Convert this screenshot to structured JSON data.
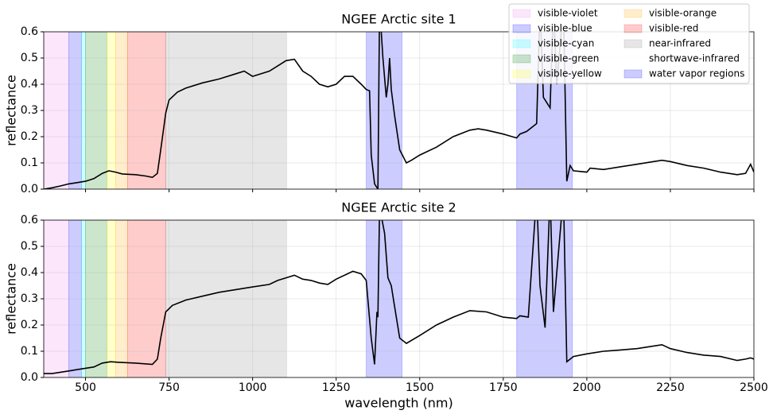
{
  "chart_data": [
    {
      "type": "line",
      "title": "NGEE Arctic site 1",
      "ylabel": "reflectance",
      "xlim": [
        375,
        2500
      ],
      "ylim": [
        0,
        0.6
      ],
      "xticks": [
        500,
        750,
        1000,
        1250,
        1500,
        1750,
        2000,
        2250,
        2500
      ],
      "yticks": [
        {
          "value": 0,
          "label": "0.0"
        },
        {
          "value": 0.1,
          "label": "0.1"
        },
        {
          "value": 0.2,
          "label": "0.2"
        },
        {
          "value": 0.3,
          "label": "0.3"
        },
        {
          "value": 0.4,
          "label": "0.4"
        },
        {
          "value": 0.5,
          "label": "0.5"
        },
        {
          "value": 0.6,
          "label": "0.6"
        }
      ],
      "grid": true,
      "legend": "upper right",
      "band_alpha": 0.2,
      "bands": [
        {
          "name": "visible-violet",
          "color": "#ee82ee",
          "range": [
            375,
            450
          ]
        },
        {
          "name": "visible-blue",
          "color": "#0000ff",
          "range": [
            450,
            488
          ]
        },
        {
          "name": "visible-cyan",
          "color": "#00ffff",
          "range": [
            488,
            500
          ]
        },
        {
          "name": "visible-green",
          "color": "#008000",
          "range": [
            500,
            564
          ]
        },
        {
          "name": "visible-yellow",
          "color": "#ffff00",
          "range": [
            564,
            590
          ]
        },
        {
          "name": "visible-orange",
          "color": "#ffa500",
          "range": [
            590,
            626
          ]
        },
        {
          "name": "visible-red",
          "color": "#ff0000",
          "range": [
            626,
            740
          ]
        },
        {
          "name": "near-infrared",
          "color": "#808080",
          "range": [
            740,
            1102
          ]
        },
        {
          "name": "shortwave-infrared",
          "color": "#ffffff",
          "range": [
            1102,
            2500
          ]
        },
        {
          "name": "water vapor regions",
          "color": "#0000ff",
          "range": [
            1340,
            1447
          ]
        },
        {
          "color": "#0000ff",
          "range": [
            1790,
            1957
          ]
        }
      ],
      "series": [
        {
          "color": "#000000",
          "x": [
            375,
            400,
            425,
            450,
            475,
            500,
            525,
            550,
            570,
            590,
            610,
            650,
            680,
            700,
            715,
            725,
            740,
            750,
            775,
            800,
            850,
            900,
            950,
            975,
            1000,
            1050,
            1075,
            1100,
            1125,
            1150,
            1175,
            1200,
            1225,
            1250,
            1275,
            1300,
            1325,
            1340,
            1350,
            1355,
            1365,
            1375,
            1380,
            1390,
            1400,
            1405,
            1410,
            1415,
            1425,
            1440,
            1460,
            1475,
            1500,
            1550,
            1600,
            1650,
            1675,
            1700,
            1750,
            1790,
            1800,
            1820,
            1850,
            1860,
            1870,
            1880,
            1890,
            1900,
            1910,
            1930,
            1940,
            1950,
            1960,
            2000,
            2010,
            2050,
            2100,
            2150,
            2200,
            2225,
            2250,
            2300,
            2350,
            2400,
            2450,
            2475,
            2490,
            2500
          ],
          "values": [
            0.0,
            0.005,
            0.012,
            0.02,
            0.025,
            0.03,
            0.04,
            0.06,
            0.07,
            0.065,
            0.058,
            0.055,
            0.05,
            0.045,
            0.06,
            0.15,
            0.29,
            0.34,
            0.37,
            0.385,
            0.405,
            0.42,
            0.44,
            0.45,
            0.43,
            0.45,
            0.47,
            0.49,
            0.495,
            0.45,
            0.43,
            0.4,
            0.39,
            0.4,
            0.43,
            0.43,
            0.4,
            0.38,
            0.375,
            0.13,
            0.02,
            0.0,
            0.7,
            0.5,
            0.35,
            0.4,
            0.5,
            0.38,
            0.28,
            0.15,
            0.1,
            0.11,
            0.13,
            0.16,
            0.2,
            0.225,
            0.23,
            0.225,
            0.21,
            0.195,
            0.21,
            0.22,
            0.25,
            0.7,
            0.35,
            0.33,
            0.31,
            0.7,
            0.4,
            0.7,
            0.03,
            0.09,
            0.07,
            0.065,
            0.08,
            0.075,
            0.085,
            0.095,
            0.105,
            0.11,
            0.105,
            0.09,
            0.08,
            0.065,
            0.055,
            0.06,
            0.095,
            0.065
          ]
        }
      ]
    },
    {
      "type": "line",
      "title": "NGEE Arctic site 2",
      "ylabel": "reflectance",
      "xlabel": "wavelength (nm)",
      "xlim": [
        375,
        2500
      ],
      "ylim": [
        0,
        0.6
      ],
      "xticks": [
        500,
        750,
        1000,
        1250,
        1500,
        1750,
        2000,
        2250,
        2500
      ],
      "yticks": [
        {
          "value": 0,
          "label": "0.0"
        },
        {
          "value": 0.1,
          "label": "0.1"
        },
        {
          "value": 0.2,
          "label": "0.2"
        },
        {
          "value": 0.3,
          "label": "0.3"
        },
        {
          "value": 0.4,
          "label": "0.4"
        },
        {
          "value": 0.5,
          "label": "0.5"
        },
        {
          "value": 0.6,
          "label": "0.6"
        }
      ],
      "grid": true,
      "band_alpha": 0.2,
      "bands": [
        {
          "color": "#ee82ee",
          "range": [
            375,
            450
          ]
        },
        {
          "color": "#0000ff",
          "range": [
            450,
            488
          ]
        },
        {
          "color": "#00ffff",
          "range": [
            488,
            500
          ]
        },
        {
          "color": "#008000",
          "range": [
            500,
            564
          ]
        },
        {
          "color": "#ffff00",
          "range": [
            564,
            590
          ]
        },
        {
          "color": "#ffa500",
          "range": [
            590,
            626
          ]
        },
        {
          "color": "#ff0000",
          "range": [
            626,
            740
          ]
        },
        {
          "color": "#808080",
          "range": [
            740,
            1102
          ]
        },
        {
          "color": "#ffffff",
          "range": [
            1102,
            2500
          ]
        },
        {
          "color": "#0000ff",
          "range": [
            1340,
            1447
          ]
        },
        {
          "color": "#0000ff",
          "range": [
            1790,
            1957
          ]
        }
      ],
      "series": [
        {
          "color": "#000000",
          "x": [
            375,
            400,
            425,
            450,
            475,
            500,
            525,
            550,
            575,
            600,
            650,
            700,
            715,
            725,
            740,
            760,
            800,
            850,
            900,
            950,
            1000,
            1050,
            1075,
            1100,
            1125,
            1150,
            1175,
            1200,
            1225,
            1250,
            1300,
            1325,
            1340,
            1355,
            1365,
            1372,
            1375,
            1380,
            1395,
            1405,
            1415,
            1425,
            1440,
            1460,
            1500,
            1550,
            1600,
            1650,
            1700,
            1750,
            1790,
            1800,
            1825,
            1850,
            1860,
            1875,
            1890,
            1900,
            1930,
            1940,
            1960,
            2000,
            2050,
            2100,
            2150,
            2200,
            2225,
            2250,
            2300,
            2350,
            2400,
            2450,
            2475,
            2490,
            2500
          ],
          "values": [
            0.015,
            0.015,
            0.02,
            0.025,
            0.03,
            0.035,
            0.04,
            0.055,
            0.06,
            0.058,
            0.055,
            0.05,
            0.07,
            0.15,
            0.25,
            0.275,
            0.295,
            0.31,
            0.325,
            0.335,
            0.345,
            0.355,
            0.37,
            0.38,
            0.39,
            0.375,
            0.37,
            0.36,
            0.355,
            0.375,
            0.405,
            0.395,
            0.37,
            0.15,
            0.05,
            0.25,
            0.23,
            0.65,
            0.55,
            0.38,
            0.35,
            0.27,
            0.15,
            0.13,
            0.16,
            0.2,
            0.23,
            0.255,
            0.25,
            0.23,
            0.225,
            0.235,
            0.23,
            0.7,
            0.35,
            0.19,
            0.7,
            0.25,
            0.7,
            0.06,
            0.08,
            0.09,
            0.1,
            0.105,
            0.11,
            0.12,
            0.125,
            0.11,
            0.095,
            0.085,
            0.08,
            0.065,
            0.07,
            0.075,
            0.07
          ]
        }
      ]
    }
  ]
}
